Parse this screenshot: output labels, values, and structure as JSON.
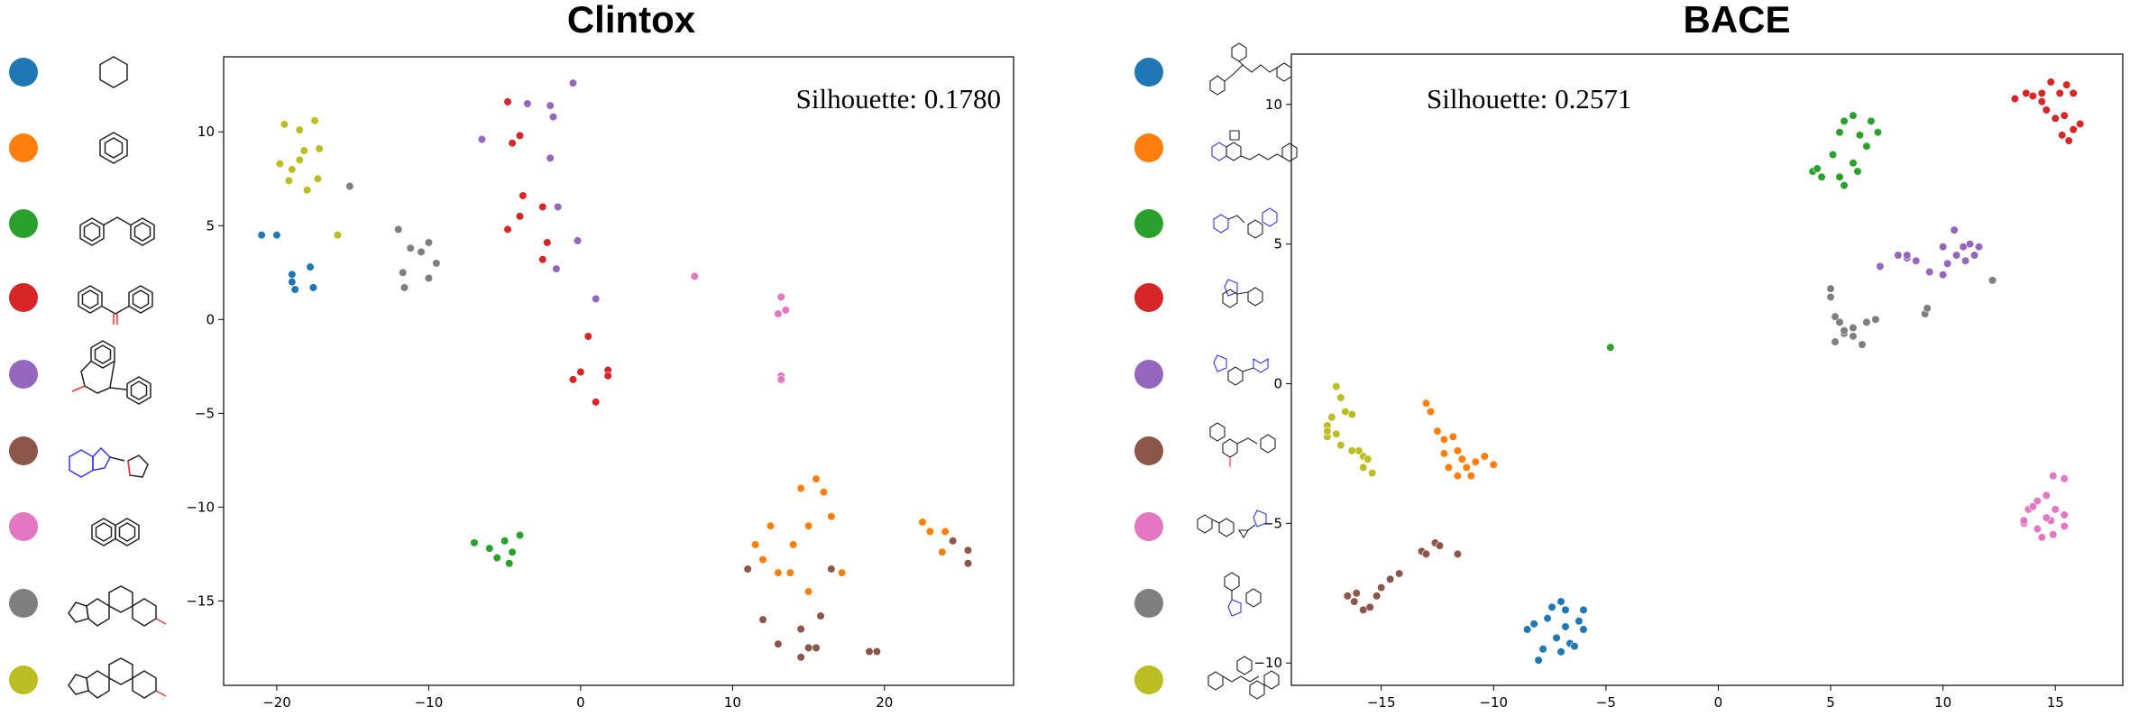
{
  "colors": [
    "#1f77b4",
    "#ff7f0e",
    "#2ca02c",
    "#d62728",
    "#9467bd",
    "#8c564b",
    "#e377c2",
    "#7f7f7f",
    "#bcbd22"
  ],
  "chart_data": [
    {
      "type": "scatter",
      "title": "Clintox",
      "annotation": "Silhouette: 0.1780",
      "xlim": [
        -23.5,
        28.5
      ],
      "ylim": [
        -19.5,
        14
      ],
      "xticks": [
        -20,
        -10,
        0,
        10,
        20
      ],
      "yticks": [
        10,
        5,
        0,
        -5,
        -10,
        -15
      ],
      "legend_placement": "left",
      "grid": false,
      "series": [
        {
          "color": "#1f77b4",
          "points": [
            [
              -21,
              4.5
            ],
            [
              -20,
              4.5
            ],
            [
              -19,
              2.4
            ],
            [
              -18.8,
              1.6
            ],
            [
              -17.8,
              2.8
            ],
            [
              -17.6,
              1.7
            ],
            [
              -19,
              2.0
            ]
          ]
        },
        {
          "color": "#ff7f0e",
          "points": [
            [
              11.5,
              -12.0
            ],
            [
              12.5,
              -11.0
            ],
            [
              12.0,
              -12.8
            ],
            [
              13.0,
              -13.5
            ],
            [
              14.0,
              -12.0
            ],
            [
              15.0,
              -11.0
            ],
            [
              14.5,
              -9.0
            ],
            [
              15.5,
              -8.5
            ],
            [
              16.0,
              -9.2
            ],
            [
              16.5,
              -10.5
            ],
            [
              15.0,
              -14.5
            ],
            [
              13.8,
              -13.5
            ],
            [
              17.2,
              -13.5
            ],
            [
              22.5,
              -10.8
            ],
            [
              23.0,
              -11.3
            ],
            [
              23.8,
              -12.4
            ],
            [
              24.0,
              -11.3
            ]
          ]
        },
        {
          "color": "#2ca02c",
          "points": [
            [
              -7.0,
              -11.9
            ],
            [
              -6.0,
              -12.2
            ],
            [
              -5.0,
              -11.8
            ],
            [
              -4.5,
              -12.4
            ],
            [
              -4.0,
              -11.5
            ],
            [
              -5.5,
              -12.7
            ],
            [
              -4.7,
              -13.0
            ]
          ]
        },
        {
          "color": "#d62728",
          "points": [
            [
              -4.8,
              11.6
            ],
            [
              -4.0,
              9.8
            ],
            [
              -4.5,
              9.4
            ],
            [
              -3.8,
              6.6
            ],
            [
              -4.0,
              5.5
            ],
            [
              -4.8,
              4.8
            ],
            [
              -2.5,
              6.0
            ],
            [
              -2.2,
              4.1
            ],
            [
              -2.5,
              3.2
            ],
            [
              0.5,
              -0.9
            ],
            [
              0,
              -2.8
            ],
            [
              -0.5,
              -3.2
            ],
            [
              1.0,
              -4.4
            ],
            [
              1.8,
              -2.7
            ],
            [
              1.8,
              -3.0
            ]
          ]
        },
        {
          "color": "#9467bd",
          "points": [
            [
              -6.5,
              9.6
            ],
            [
              -3.5,
              11.5
            ],
            [
              -2.0,
              11.4
            ],
            [
              -1.8,
              10.8
            ],
            [
              -0.5,
              12.6
            ],
            [
              -2.0,
              8.6
            ],
            [
              -1.5,
              6.0
            ],
            [
              -1.6,
              2.7
            ],
            [
              -0.2,
              4.2
            ],
            [
              1.0,
              1.1
            ]
          ]
        },
        {
          "color": "#8c564b",
          "points": [
            [
              11.0,
              -13.3
            ],
            [
              12.0,
              -16.0
            ],
            [
              13.0,
              -17.3
            ],
            [
              14.5,
              -16.5
            ],
            [
              15.0,
              -17.5
            ],
            [
              14.5,
              -18.0
            ],
            [
              15.5,
              -17.5
            ],
            [
              15.8,
              -15.8
            ],
            [
              16.5,
              -13.3
            ],
            [
              19.0,
              -17.7
            ],
            [
              19.5,
              -17.7
            ],
            [
              24.5,
              -11.8
            ],
            [
              25.5,
              -12.3
            ],
            [
              25.5,
              -13.0
            ]
          ]
        },
        {
          "color": "#e377c2",
          "points": [
            [
              7.5,
              2.3
            ],
            [
              13.2,
              1.2
            ],
            [
              13.0,
              0.3
            ],
            [
              13.5,
              0.5
            ],
            [
              13.2,
              -3.0
            ],
            [
              13.2,
              -3.2
            ]
          ]
        },
        {
          "color": "#7f7f7f",
          "points": [
            [
              -15.2,
              7.1
            ],
            [
              -12.0,
              4.8
            ],
            [
              -11.7,
              2.5
            ],
            [
              -11.6,
              1.7
            ],
            [
              -10.5,
              3.6
            ],
            [
              -10.0,
              4.1
            ],
            [
              -9.5,
              3.0
            ],
            [
              -10.0,
              2.2
            ],
            [
              -11.2,
              3.8
            ]
          ]
        },
        {
          "color": "#bcbd22",
          "points": [
            [
              -19.5,
              10.4
            ],
            [
              -18.5,
              10.1
            ],
            [
              -17.5,
              10.6
            ],
            [
              -18.2,
              9.0
            ],
            [
              -17.2,
              9.1
            ],
            [
              -19.8,
              8.3
            ],
            [
              -19.0,
              8.0
            ],
            [
              -18.5,
              8.5
            ],
            [
              -17.3,
              7.5
            ],
            [
              -18.0,
              6.9
            ],
            [
              -19.2,
              7.4
            ],
            [
              -16.0,
              4.5
            ]
          ]
        }
      ]
    },
    {
      "type": "scatter",
      "title": "BACE",
      "annotation": "Silhouette: 0.2571",
      "xlim": [
        -19.0,
        18.0
      ],
      "ylim": [
        -10.8,
        11.8
      ],
      "xticks": [
        -15,
        -10,
        -5,
        0,
        5,
        10,
        15
      ],
      "yticks": [
        10,
        5,
        0,
        -5,
        -10
      ],
      "legend_placement": "left",
      "grid": false,
      "series": [
        {
          "color": "#1f77b4",
          "points": [
            [
              -8.0,
              -9.9
            ],
            [
              -7.8,
              -9.5
            ],
            [
              -7.2,
              -9.1
            ],
            [
              -7.0,
              -9.6
            ],
            [
              -6.6,
              -9.3
            ],
            [
              -6.4,
              -9.4
            ],
            [
              -6.0,
              -8.8
            ],
            [
              -6.2,
              -8.5
            ],
            [
              -6.0,
              -8.1
            ],
            [
              -6.8,
              -8.7
            ],
            [
              -7.6,
              -8.4
            ],
            [
              -8.2,
              -8.6
            ],
            [
              -7.4,
              -8.0
            ],
            [
              -7.0,
              -7.8
            ],
            [
              -6.8,
              -8.1
            ],
            [
              -8.5,
              -8.8
            ]
          ]
        },
        {
          "color": "#ff7f0e",
          "points": [
            [
              -13.0,
              -0.7
            ],
            [
              -12.8,
              -1.0
            ],
            [
              -12.5,
              -1.7
            ],
            [
              -12.2,
              -2.0
            ],
            [
              -11.8,
              -1.9
            ],
            [
              -11.6,
              -2.4
            ],
            [
              -11.4,
              -2.7
            ],
            [
              -11.2,
              -3.0
            ],
            [
              -11.0,
              -3.3
            ],
            [
              -10.8,
              -2.8
            ],
            [
              -10.4,
              -2.6
            ],
            [
              -10.0,
              -2.9
            ],
            [
              -12.2,
              -2.5
            ],
            [
              -12.0,
              -3.0
            ],
            [
              -11.6,
              -3.3
            ]
          ]
        },
        {
          "color": "#2ca02c",
          "points": [
            [
              4.2,
              7.6
            ],
            [
              4.4,
              7.7
            ],
            [
              4.6,
              7.4
            ],
            [
              5.1,
              8.2
            ],
            [
              5.4,
              7.4
            ],
            [
              5.6,
              9.4
            ],
            [
              6.0,
              9.6
            ],
            [
              6.3,
              8.9
            ],
            [
              6.6,
              8.5
            ],
            [
              6.8,
              9.4
            ],
            [
              7.1,
              9.0
            ],
            [
              5.4,
              9.0
            ],
            [
              6.0,
              7.9
            ],
            [
              5.6,
              7.1
            ],
            [
              6.2,
              7.6
            ],
            [
              -4.8,
              1.3
            ]
          ]
        },
        {
          "color": "#d62728",
          "points": [
            [
              13.2,
              10.2
            ],
            [
              13.7,
              10.4
            ],
            [
              14.0,
              10.3
            ],
            [
              14.4,
              10.1
            ],
            [
              14.8,
              10.8
            ],
            [
              15.2,
              10.4
            ],
            [
              15.5,
              10.7
            ],
            [
              15.8,
              10.4
            ],
            [
              14.6,
              9.8
            ],
            [
              15.0,
              9.5
            ],
            [
              15.4,
              9.6
            ],
            [
              15.8,
              9.1
            ],
            [
              15.3,
              8.9
            ],
            [
              16.1,
              9.3
            ],
            [
              15.6,
              8.7
            ],
            [
              14.4,
              10.4
            ]
          ]
        },
        {
          "color": "#9467bd",
          "points": [
            [
              7.2,
              4.2
            ],
            [
              8.0,
              4.6
            ],
            [
              8.4,
              4.5
            ],
            [
              8.8,
              4.4
            ],
            [
              9.4,
              4.0
            ],
            [
              10.0,
              3.9
            ],
            [
              10.2,
              4.3
            ],
            [
              10.6,
              4.6
            ],
            [
              10.9,
              4.9
            ],
            [
              11.2,
              5.0
            ],
            [
              11.6,
              4.9
            ],
            [
              10.5,
              5.5
            ],
            [
              10.0,
              4.9
            ],
            [
              11.0,
              4.4
            ],
            [
              11.4,
              4.6
            ],
            [
              8.4,
              4.6
            ]
          ]
        },
        {
          "color": "#8c564b",
          "points": [
            [
              -16.5,
              -7.6
            ],
            [
              -16.2,
              -7.8
            ],
            [
              -15.8,
              -8.1
            ],
            [
              -15.5,
              -8.0
            ],
            [
              -15.2,
              -7.6
            ],
            [
              -15.0,
              -7.3
            ],
            [
              -14.6,
              -7.0
            ],
            [
              -14.2,
              -6.8
            ],
            [
              -13.2,
              -6.0
            ],
            [
              -13.0,
              -6.1
            ],
            [
              -12.6,
              -5.7
            ],
            [
              -12.4,
              -5.8
            ],
            [
              -11.6,
              -6.1
            ],
            [
              -16.1,
              -7.5
            ]
          ]
        },
        {
          "color": "#e377c2",
          "points": [
            [
              13.8,
              -4.5
            ],
            [
              14.2,
              -4.2
            ],
            [
              14.6,
              -4.0
            ],
            [
              15.0,
              -4.5
            ],
            [
              15.4,
              -4.7
            ],
            [
              14.8,
              -4.9
            ],
            [
              14.2,
              -5.2
            ],
            [
              13.6,
              -5.0
            ],
            [
              14.4,
              -5.5
            ],
            [
              14.9,
              -5.4
            ],
            [
              15.4,
              -5.1
            ],
            [
              14.9,
              -3.3
            ],
            [
              15.4,
              -3.4
            ],
            [
              13.6,
              -4.9
            ],
            [
              14.6,
              -4.8
            ],
            [
              14.0,
              -4.4
            ]
          ]
        },
        {
          "color": "#7f7f7f",
          "points": [
            [
              5.0,
              3.4
            ],
            [
              5.0,
              3.1
            ],
            [
              5.2,
              2.4
            ],
            [
              5.4,
              2.2
            ],
            [
              5.6,
              1.8
            ],
            [
              5.2,
              1.5
            ],
            [
              6.0,
              1.7
            ],
            [
              6.4,
              1.4
            ],
            [
              6.0,
              2.0
            ],
            [
              6.6,
              2.2
            ],
            [
              7.0,
              2.3
            ],
            [
              9.2,
              2.5
            ],
            [
              9.3,
              2.7
            ],
            [
              12.2,
              3.7
            ],
            [
              5.6,
              1.9
            ]
          ]
        },
        {
          "color": "#bcbd22",
          "points": [
            [
              -17.0,
              -0.1
            ],
            [
              -16.8,
              -0.5
            ],
            [
              -16.6,
              -1.0
            ],
            [
              -17.2,
              -1.2
            ],
            [
              -16.3,
              -1.1
            ],
            [
              -17.4,
              -1.5
            ],
            [
              -17.0,
              -1.8
            ],
            [
              -17.4,
              -1.9
            ],
            [
              -16.8,
              -2.2
            ],
            [
              -15.8,
              -2.6
            ],
            [
              -15.6,
              -2.7
            ],
            [
              -16.0,
              -2.4
            ],
            [
              -15.8,
              -3.0
            ],
            [
              -15.4,
              -3.2
            ],
            [
              -17.4,
              -1.7
            ],
            [
              -16.3,
              -2.4
            ]
          ]
        }
      ]
    }
  ]
}
